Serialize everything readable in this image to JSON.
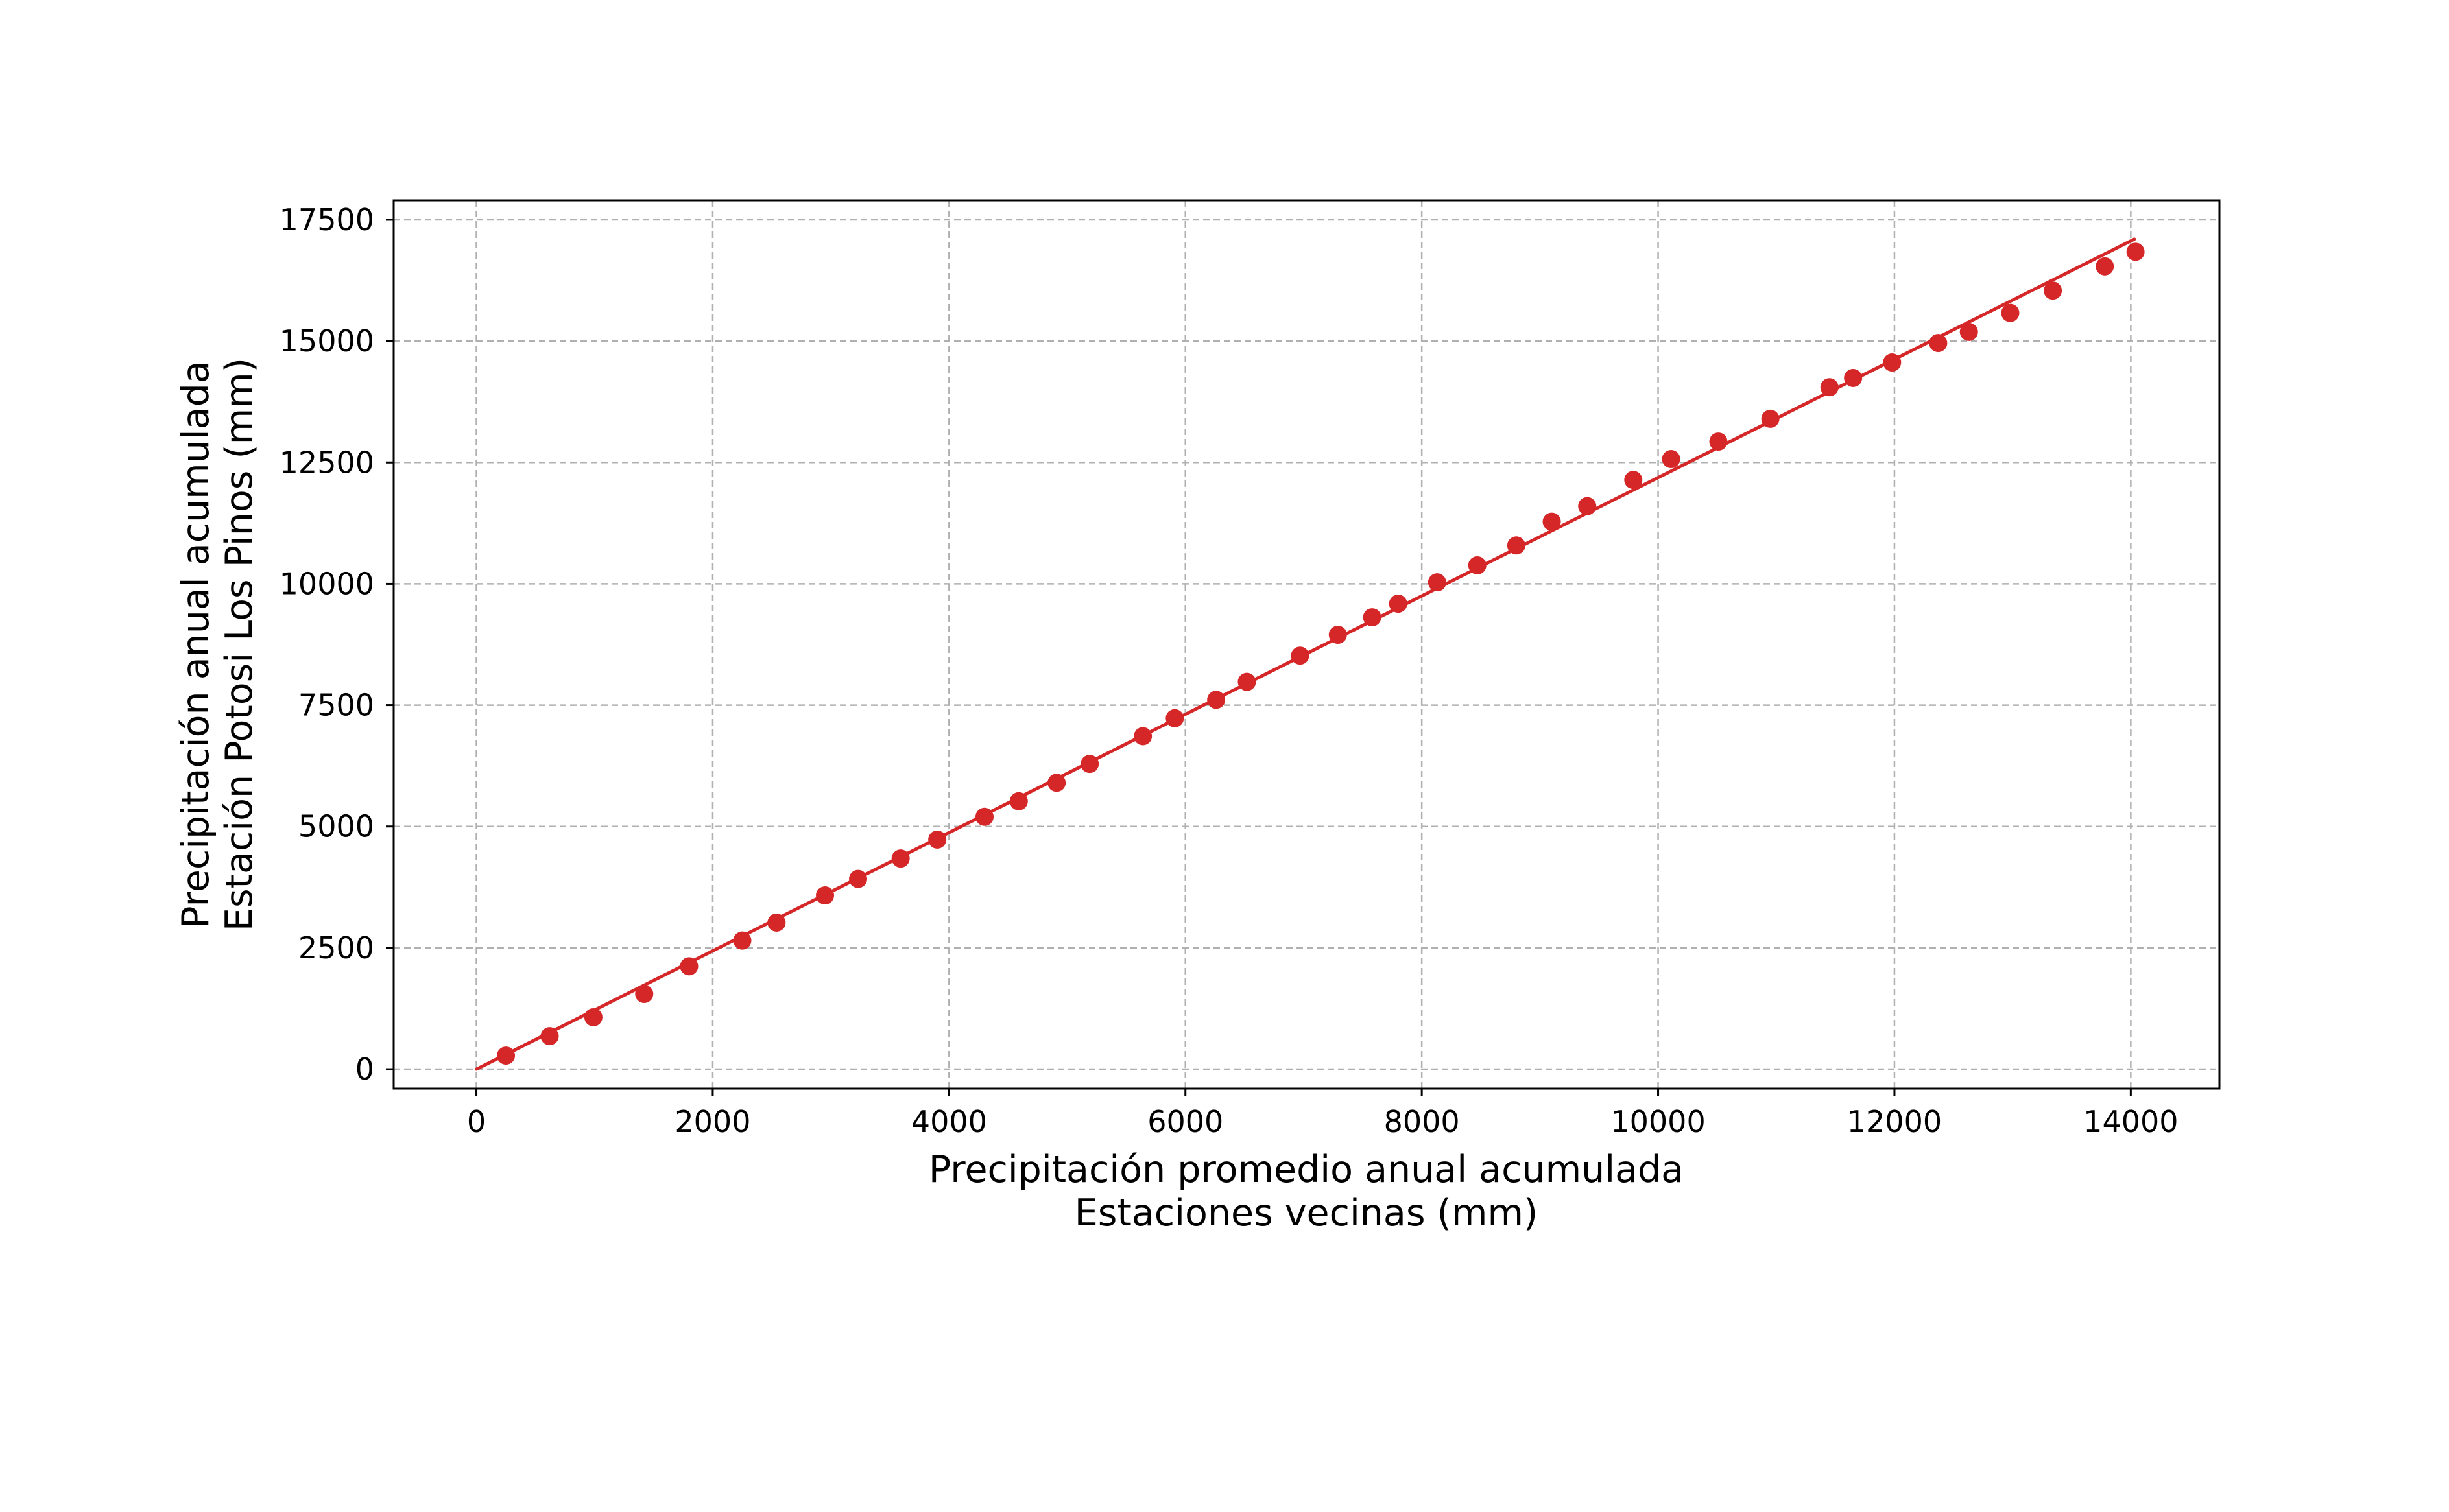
{
  "chart_data": {
    "type": "scatter",
    "title": "",
    "xlabel_lines": [
      "Precipitación promedio anual acumulada",
      "Estaciones vecinas (mm)"
    ],
    "ylabel_lines": [
      "Precipitación anual acumulada",
      "Estación Potosi Los Pinos (mm)"
    ],
    "xlim": [
      -700,
      14750
    ],
    "ylim": [
      -400,
      17900
    ],
    "xticks": [
      0,
      2000,
      4000,
      6000,
      8000,
      10000,
      12000,
      14000
    ],
    "yticks": [
      0,
      2500,
      5000,
      7500,
      10000,
      12500,
      15000,
      17500
    ],
    "grid": true,
    "color": "#d62728",
    "points": {
      "x": [
        250,
        620,
        990,
        1420,
        1800,
        2250,
        2540,
        2950,
        3230,
        3590,
        3900,
        4300,
        4590,
        4910,
        5190,
        5640,
        5910,
        6260,
        6520,
        6970,
        7290,
        7580,
        7800,
        8130,
        8470,
        8800,
        9100,
        9400,
        9790,
        10110,
        10510,
        10950,
        11450,
        11650,
        11980,
        12370,
        12630,
        12980,
        13340,
        13780,
        14040
      ],
      "y": [
        280,
        680,
        1070,
        1550,
        2120,
        2650,
        3020,
        3580,
        3920,
        4340,
        4730,
        5200,
        5520,
        5900,
        6290,
        6860,
        7230,
        7610,
        7980,
        8520,
        8950,
        9310,
        9590,
        10030,
        10380,
        10790,
        11280,
        11600,
        12140,
        12570,
        12930,
        13400,
        14050,
        14240,
        14560,
        14960,
        15190,
        15580,
        16040,
        16540,
        16840
      ]
    },
    "fit_line": {
      "x": [
        0,
        14030
      ],
      "y": [
        0,
        17100
      ]
    }
  }
}
